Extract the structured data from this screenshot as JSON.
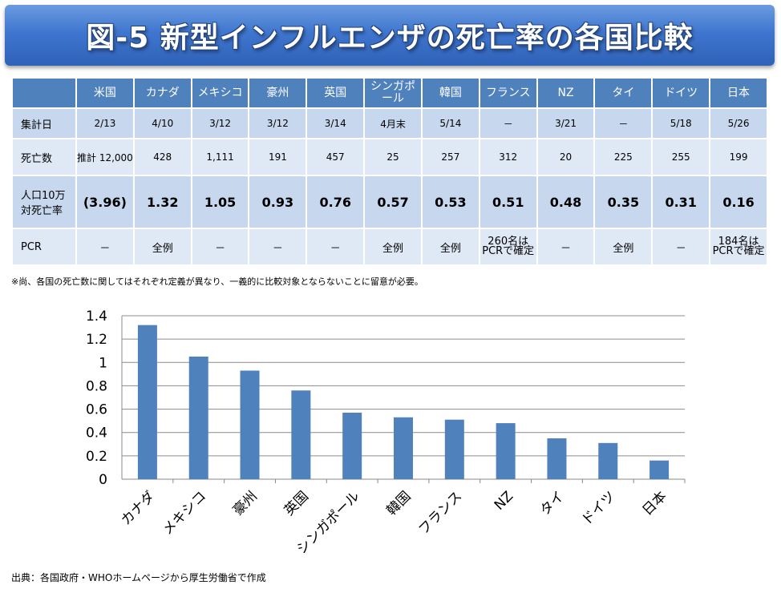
{
  "title": "図-5 新型インフルエンザの死亡率の各国比較",
  "table": {
    "countries": [
      "米国",
      "カナダ",
      "メキシコ",
      "豪州",
      "英国",
      "シンガポール",
      "韓国",
      "フランス",
      "NZ",
      "タイ",
      "ドイツ",
      "日本"
    ],
    "rows": [
      {
        "label": "集計日",
        "values": [
          "2/13",
          "4/10",
          "3/12",
          "3/12",
          "3/14",
          "4月末",
          "5/14",
          "－",
          "3/21",
          "－",
          "5/18",
          "5/26"
        ]
      },
      {
        "label": "死亡数",
        "values": [
          "推計 12,000",
          "428",
          "1,111",
          "191",
          "457",
          "25",
          "257",
          "312",
          "20",
          "225",
          "255",
          "199"
        ]
      },
      {
        "label": "人口10万対死亡率",
        "values": [
          "(3.96)",
          "1.32",
          "1.05",
          "0.93",
          "0.76",
          "0.57",
          "0.53",
          "0.51",
          "0.48",
          "0.35",
          "0.31",
          "0.16"
        ]
      },
      {
        "label": "PCR",
        "values": [
          "－",
          "全例",
          "－",
          "－",
          "－",
          "全例",
          "全例",
          "260名は PCRで確定",
          "－",
          "全例",
          "－",
          "184名は PCRで確定"
        ]
      }
    ]
  },
  "note": "※尚、各国の死亡数に関してはそれぞれ定義が異なり、一義的に比較対象とならないことに留意が必要。",
  "source": "出典：各国政府・WHOホームページから厚生労働省で作成",
  "colors": {
    "header": "#4f81bd",
    "bar": "#4f81bd",
    "banner": "#3f76cf"
  },
  "chart_data": {
    "type": "bar",
    "categories": [
      "カナダ",
      "メキシコ",
      "豪州",
      "英国",
      "シンガポール",
      "韓国",
      "フランス",
      "NZ",
      "タイ",
      "ドイツ",
      "日本"
    ],
    "values": [
      1.32,
      1.05,
      0.93,
      0.76,
      0.57,
      0.53,
      0.51,
      0.48,
      0.35,
      0.31,
      0.16
    ],
    "yticks": [
      "0",
      "0.2",
      "0.4",
      "0.6",
      "0.8",
      "1",
      "1.2",
      "1.4"
    ],
    "ylim": [
      0,
      1.4
    ],
    "grid": true,
    "legend": "none"
  }
}
